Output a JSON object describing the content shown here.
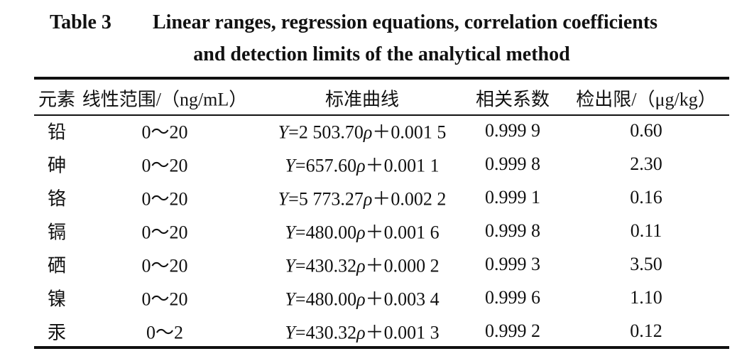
{
  "caption": {
    "label": "Table 3",
    "lines": [
      "Linear ranges, regression equations, correlation coefficients",
      "and detection limits of the analytical method"
    ]
  },
  "table": {
    "header": [
      "元素",
      "线性范围/（ng/mL）",
      "标准曲线",
      "相关系数",
      "检出限/（μg/kg）"
    ],
    "rows": [
      [
        "铅",
        "0～20",
        "Y=2 503.70ρ＋0.001 5",
        "0.999 9",
        "0.60"
      ],
      [
        "砷",
        "0～20",
        "Y=657.60ρ＋0.001 1",
        "0.999 8",
        "2.30"
      ],
      [
        "铬",
        "0～20",
        "Y=5 773.27ρ＋0.002 2",
        "0.999 1",
        "0.16"
      ],
      [
        "镉",
        "0～20",
        "Y=480.00ρ＋0.001 6",
        "0.999 8",
        "0.11"
      ],
      [
        "硒",
        "0～20",
        "Y=430.32ρ＋0.000 2",
        "0.999 3",
        "3.50"
      ],
      [
        "镍",
        "0～20",
        "Y=480.00ρ＋0.003 4",
        "0.999 6",
        "1.10"
      ],
      [
        "汞",
        "0～2",
        "Y=430.32ρ＋0.001 3",
        "0.999 2",
        "0.12"
      ]
    ]
  }
}
